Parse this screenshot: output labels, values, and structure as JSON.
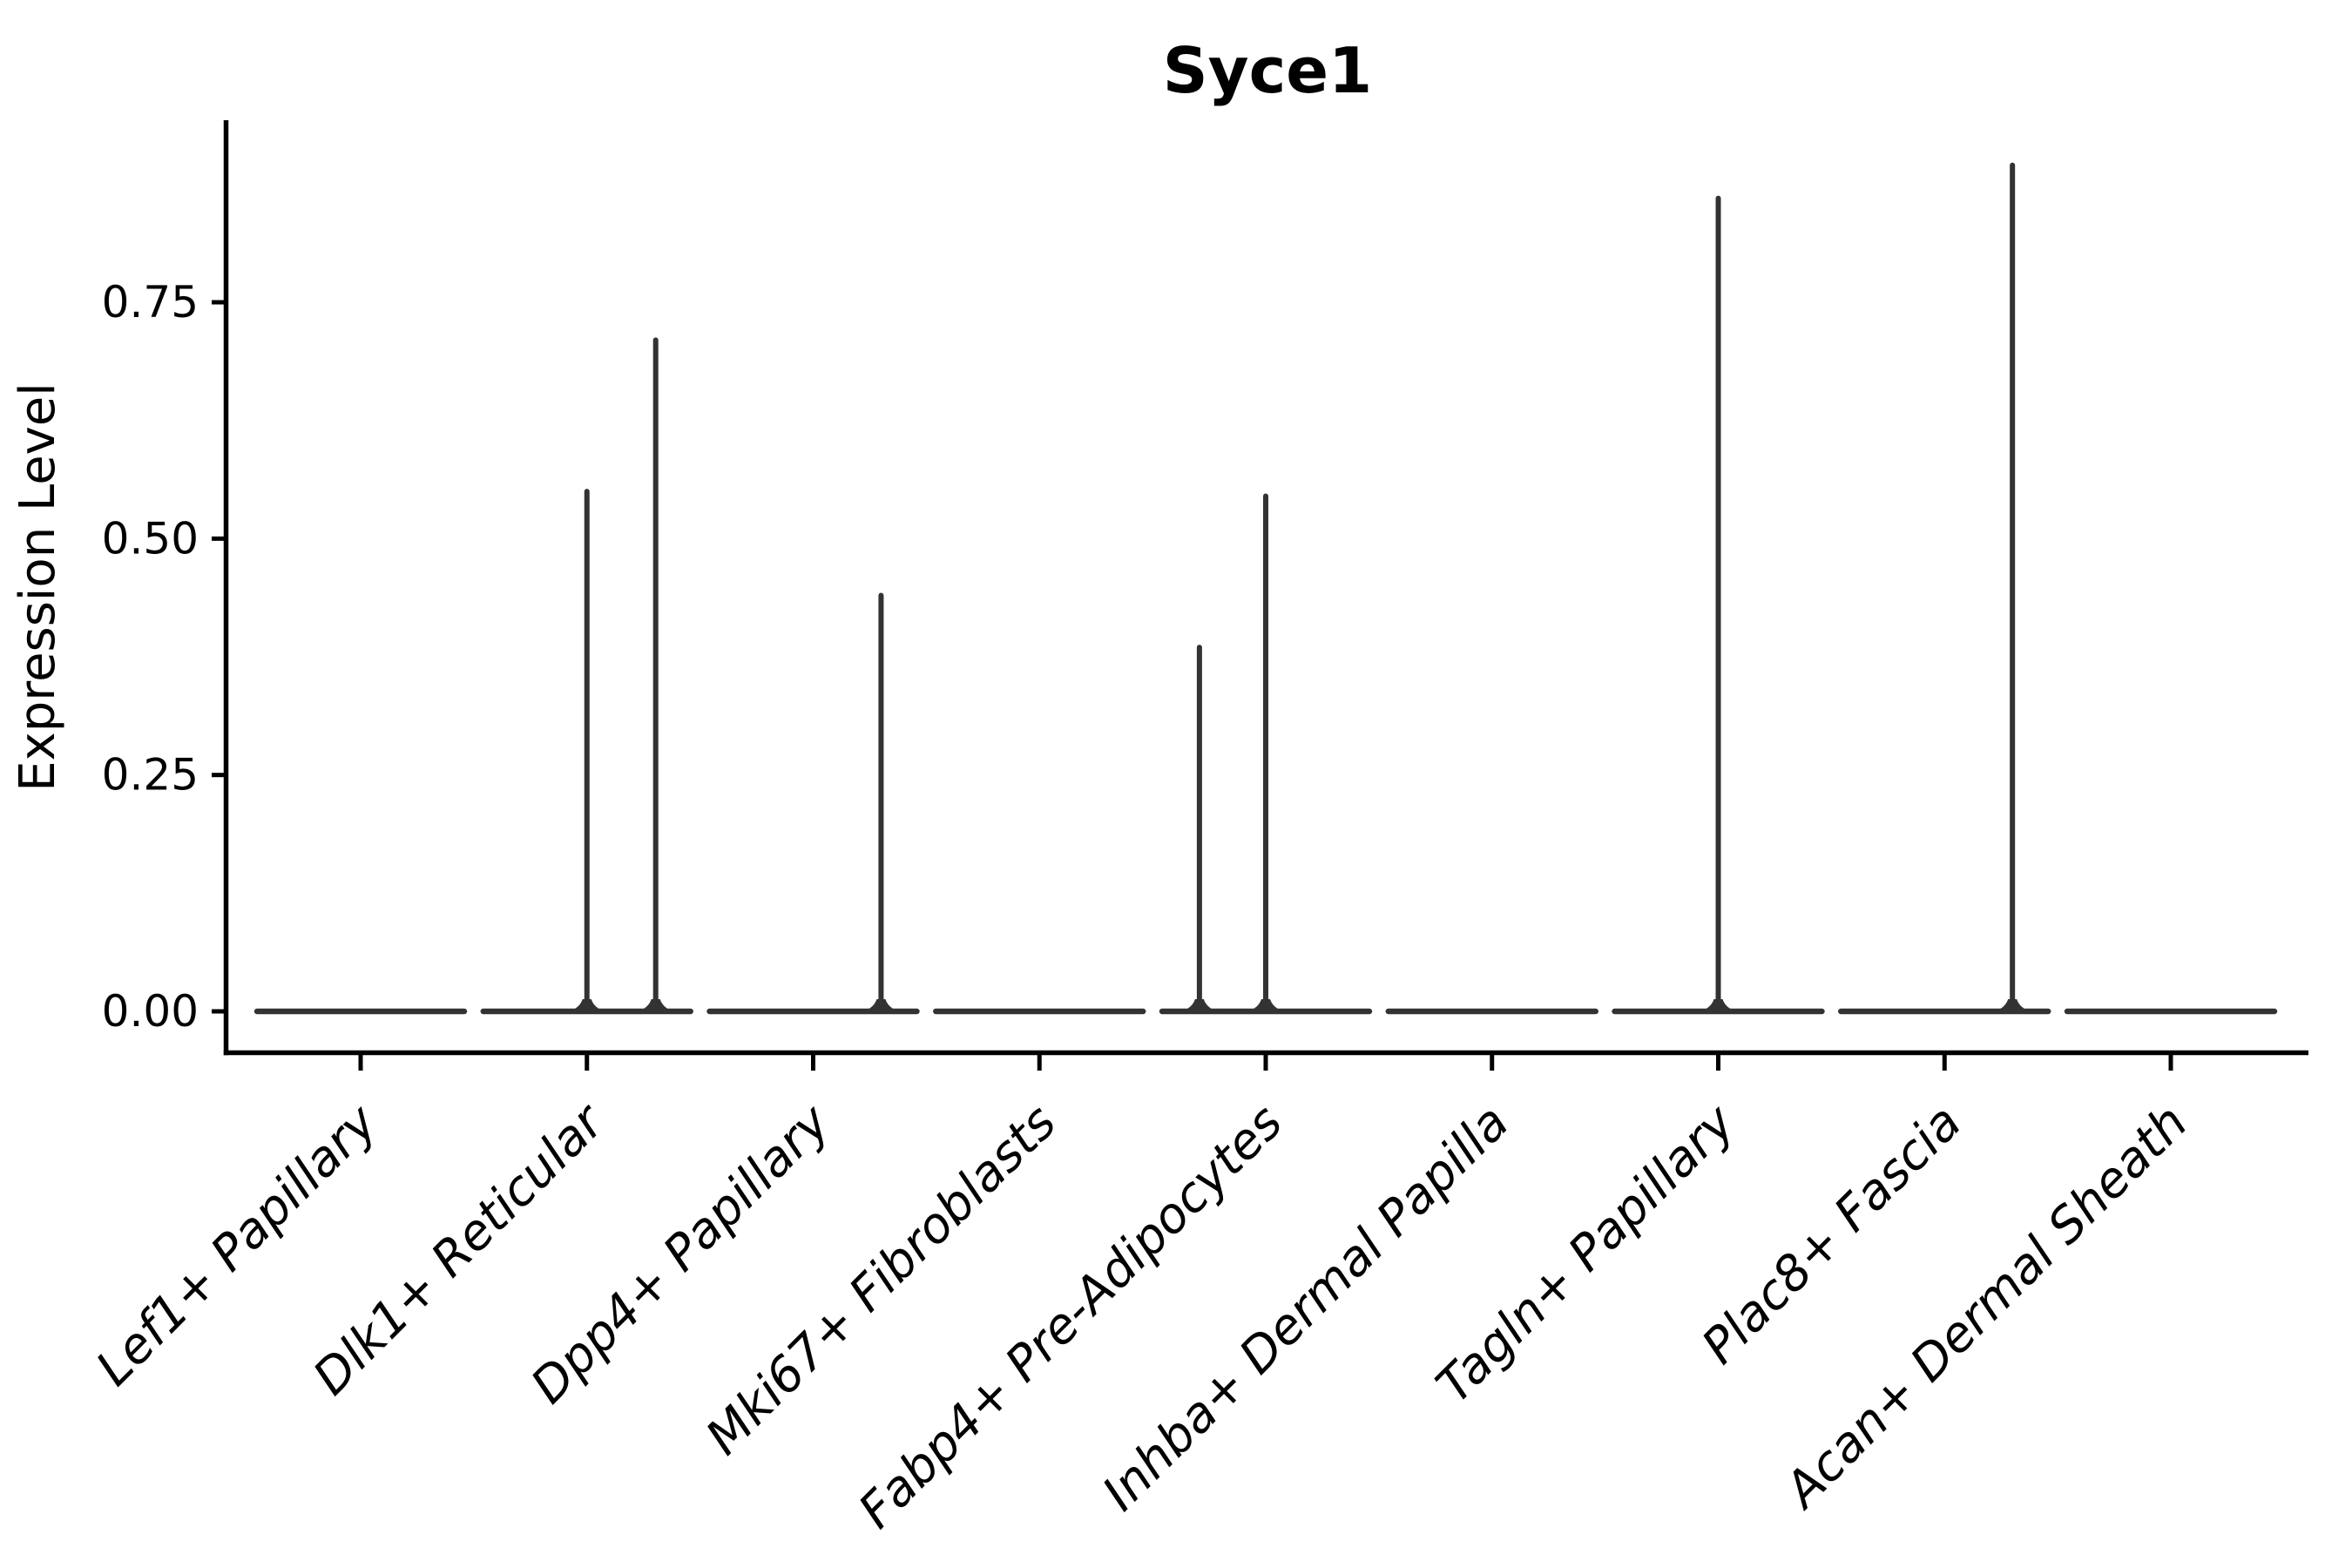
{
  "figure": {
    "background": "#ffffff",
    "axis_color": "#000000",
    "violin_color": "#333333"
  },
  "chart_data": {
    "type": "violin",
    "title": "Syce1",
    "xlabel": "",
    "ylabel": "Expression Level",
    "grid": false,
    "legend": null,
    "ylim": [
      0,
      0.94
    ],
    "ytick_labels": [
      "0.00",
      "0.25",
      "0.50",
      "0.75"
    ],
    "ytick_values": [
      0,
      0.25,
      0.5,
      0.75
    ],
    "categories": [
      "Lef1+ Papillary",
      "Dlk1+ Reticular",
      "Dpp4+ Papillary",
      "Mki67+ Fibroblasts",
      "Fabp4+ Pre-Adipocytes",
      "Inhba+ Dermal Papilla",
      "Tagln+ Papillary",
      "Plac8+ Fascia",
      "Acan+ Dermal Sheath"
    ],
    "violin_body_halfwidth": 0.458,
    "violins": [
      {
        "name": "Lef1+ Papillary",
        "baseline_value": 0,
        "spikes": []
      },
      {
        "name": "Dlk1+ Reticular",
        "baseline_value": 0,
        "spikes": [
          {
            "offset": 0.0,
            "value": 0.55
          },
          {
            "offset": 0.304,
            "value": 0.71
          }
        ]
      },
      {
        "name": "Dpp4+ Papillary",
        "baseline_value": 0,
        "spikes": [
          {
            "offset": 0.3,
            "value": 0.44
          }
        ]
      },
      {
        "name": "Mki67+ Fibroblasts",
        "baseline_value": 0,
        "spikes": []
      },
      {
        "name": "Fabp4+ Pre-Adipocytes",
        "baseline_value": 0,
        "spikes": [
          {
            "offset": -0.293,
            "value": 0.385
          },
          {
            "offset": 0.0,
            "value": 0.545
          }
        ]
      },
      {
        "name": "Inhba+ Dermal Papilla",
        "baseline_value": 0,
        "spikes": []
      },
      {
        "name": "Tagln+ Papillary",
        "baseline_value": 0,
        "spikes": [
          {
            "offset": 0.0,
            "value": 0.86
          }
        ]
      },
      {
        "name": "Plac8+ Fascia",
        "baseline_value": 0,
        "spikes": [
          {
            "offset": 0.3,
            "value": 0.895
          }
        ]
      },
      {
        "name": "Acan+ Dermal Sheath",
        "baseline_value": 0,
        "spikes": []
      }
    ]
  }
}
